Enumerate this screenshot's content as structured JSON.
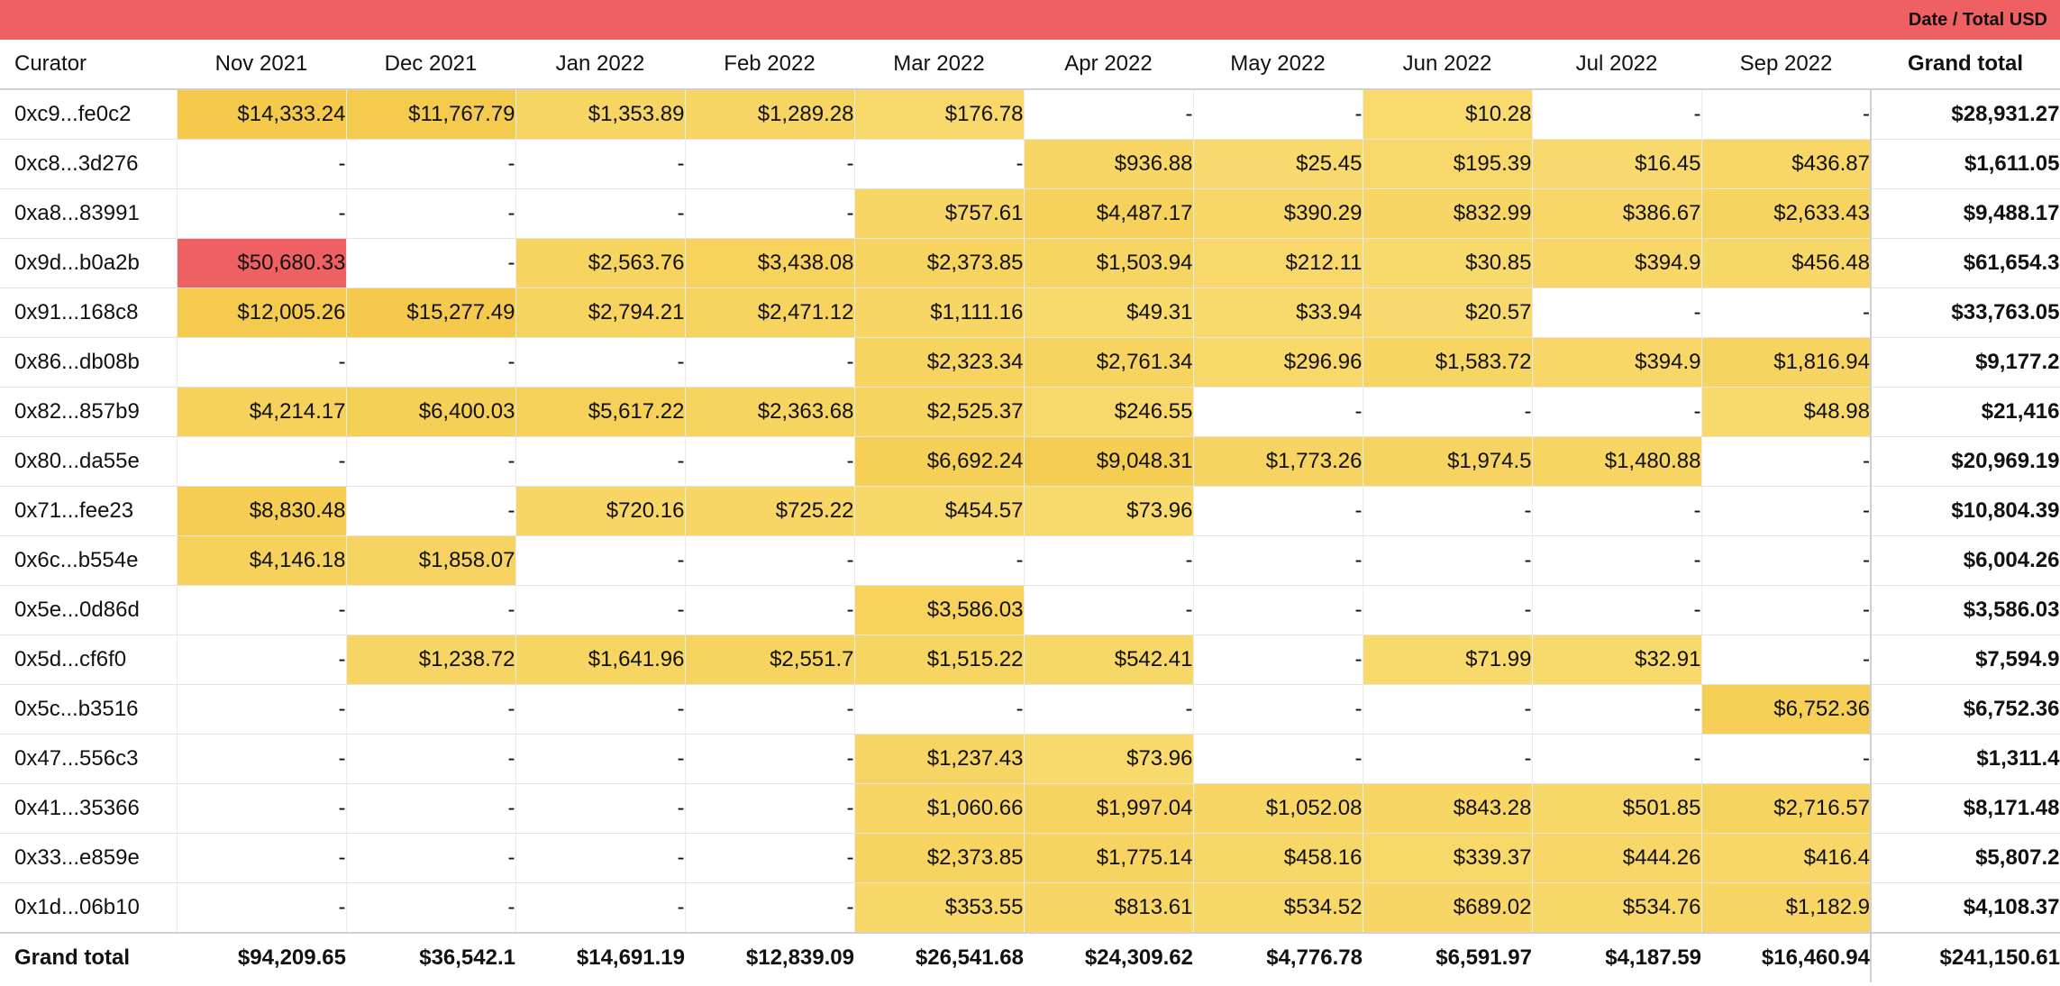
{
  "chart_data": {
    "type": "table",
    "header_label": "Date / Total USD",
    "row_header": "Curator",
    "columns": [
      "Nov 2021",
      "Dec 2021",
      "Jan 2022",
      "Feb 2022",
      "Mar 2022",
      "Apr 2022",
      "May 2022",
      "Jun 2022",
      "Jul 2022",
      "Sep 2022"
    ],
    "grand_total_label": "Grand total",
    "rows": [
      {
        "curator": "0xc9...fe0c2",
        "values": [
          "$14,333.24",
          "$11,767.79",
          "$1,353.89",
          "$1,289.28",
          "$176.78",
          "-",
          "-",
          "$10.28",
          "-",
          "-"
        ],
        "total": "$28,931.27"
      },
      {
        "curator": "0xc8...3d276",
        "values": [
          "-",
          "-",
          "-",
          "-",
          "-",
          "$936.88",
          "$25.45",
          "$195.39",
          "$16.45",
          "$436.87"
        ],
        "total": "$1,611.05"
      },
      {
        "curator": "0xa8...83991",
        "values": [
          "-",
          "-",
          "-",
          "-",
          "$757.61",
          "$4,487.17",
          "$390.29",
          "$832.99",
          "$386.67",
          "$2,633.43"
        ],
        "total": "$9,488.17"
      },
      {
        "curator": "0x9d...b0a2b",
        "values": [
          "$50,680.33",
          "-",
          "$2,563.76",
          "$3,438.08",
          "$2,373.85",
          "$1,503.94",
          "$212.11",
          "$30.85",
          "$394.9",
          "$456.48"
        ],
        "total": "$61,654.3"
      },
      {
        "curator": "0x91...168c8",
        "values": [
          "$12,005.26",
          "$15,277.49",
          "$2,794.21",
          "$2,471.12",
          "$1,111.16",
          "$49.31",
          "$33.94",
          "$20.57",
          "-",
          "-"
        ],
        "total": "$33,763.05"
      },
      {
        "curator": "0x86...db08b",
        "values": [
          "-",
          "-",
          "-",
          "-",
          "$2,323.34",
          "$2,761.34",
          "$296.96",
          "$1,583.72",
          "$394.9",
          "$1,816.94"
        ],
        "total": "$9,177.2"
      },
      {
        "curator": "0x82...857b9",
        "values": [
          "$4,214.17",
          "$6,400.03",
          "$5,617.22",
          "$2,363.68",
          "$2,525.37",
          "$246.55",
          "-",
          "-",
          "-",
          "$48.98"
        ],
        "total": "$21,416"
      },
      {
        "curator": "0x80...da55e",
        "values": [
          "-",
          "-",
          "-",
          "-",
          "$6,692.24",
          "$9,048.31",
          "$1,773.26",
          "$1,974.5",
          "$1,480.88",
          "-"
        ],
        "total": "$20,969.19"
      },
      {
        "curator": "0x71...fee23",
        "values": [
          "$8,830.48",
          "-",
          "$720.16",
          "$725.22",
          "$454.57",
          "$73.96",
          "-",
          "-",
          "-",
          "-"
        ],
        "total": "$10,804.39"
      },
      {
        "curator": "0x6c...b554e",
        "values": [
          "$4,146.18",
          "$1,858.07",
          "-",
          "-",
          "-",
          "-",
          "-",
          "-",
          "-",
          "-"
        ],
        "total": "$6,004.26"
      },
      {
        "curator": "0x5e...0d86d",
        "values": [
          "-",
          "-",
          "-",
          "-",
          "$3,586.03",
          "-",
          "-",
          "-",
          "-",
          "-"
        ],
        "total": "$3,586.03"
      },
      {
        "curator": "0x5d...cf6f0",
        "values": [
          "-",
          "$1,238.72",
          "$1,641.96",
          "$2,551.7",
          "$1,515.22",
          "$542.41",
          "-",
          "$71.99",
          "$32.91",
          "-"
        ],
        "total": "$7,594.9"
      },
      {
        "curator": "0x5c...b3516",
        "values": [
          "-",
          "-",
          "-",
          "-",
          "-",
          "-",
          "-",
          "-",
          "-",
          "$6,752.36"
        ],
        "total": "$6,752.36"
      },
      {
        "curator": "0x47...556c3",
        "values": [
          "-",
          "-",
          "-",
          "-",
          "$1,237.43",
          "$73.96",
          "-",
          "-",
          "-",
          "-"
        ],
        "total": "$1,311.4"
      },
      {
        "curator": "0x41...35366",
        "values": [
          "-",
          "-",
          "-",
          "-",
          "$1,060.66",
          "$1,997.04",
          "$1,052.08",
          "$843.28",
          "$501.85",
          "$2,716.57"
        ],
        "total": "$8,171.48"
      },
      {
        "curator": "0x33...e859e",
        "values": [
          "-",
          "-",
          "-",
          "-",
          "$2,373.85",
          "$1,775.14",
          "$458.16",
          "$339.37",
          "$444.26",
          "$416.4"
        ],
        "total": "$5,807.2"
      },
      {
        "curator": "0x1d...06b10",
        "values": [
          "-",
          "-",
          "-",
          "-",
          "$353.55",
          "$813.61",
          "$534.52",
          "$689.02",
          "$534.76",
          "$1,182.9"
        ],
        "total": "$4,108.37"
      }
    ],
    "column_totals": [
      "$94,209.65",
      "$36,542.1",
      "$14,691.19",
      "$12,839.09",
      "$26,541.68",
      "$24,309.62",
      "$4,776.78",
      "$6,591.97",
      "$4,187.59",
      "$16,460.94"
    ],
    "grand_total": "$241,150.61",
    "colors": {
      "header_bar": "#ee6062",
      "cell_low": "#f8da6e",
      "cell_mid": "#f5c94a",
      "cell_high": "#ee6062"
    }
  }
}
